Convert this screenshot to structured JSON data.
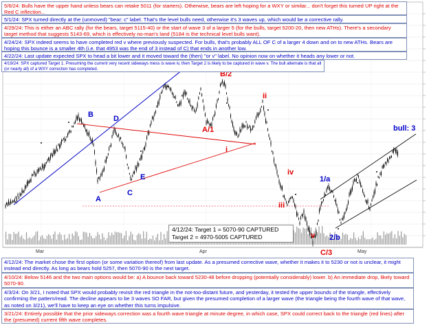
{
  "chart_data": {
    "type": "line",
    "annotations_top": [
      {
        "color": "#e00000",
        "text": "5/6/24:  Bulls have the upper hand unless bears can retake 5011 (for starters).  Otherwise, bears are left hoping for a WXY or similar... don't forget this turned UP right at the Red C inflection..."
      },
      {
        "color": "#0000c8",
        "text": "5/1/24:  SPX turned directly at the (unmoved) \"bear: c\" label.  That's the level bulls need, otherwise it's 3 waves up, which would be a corrective rally."
      },
      {
        "color": "#e00000",
        "text": "4/29/24:  This is either an ABC rally (for the bears, target 5115-40) or the start of wave 3 of a larger 5 (for the bulls, target 5200-20, then new ATHs).   There's a secondary target method that suggests 5143-69, which is effectively no-man's land (5184 is the technical level bulls want)."
      },
      {
        "color": "#0000c8",
        "text": "4/24/24:  SPX indeed seems to have completed red v where previously suspected.  For bulls, that's probably ALL OF C of a larger 4 down and on to new ATHs.  Bears are hoping this bounce is a smaller 4th (i.e. that 4953 was the end of 3 instead of C) that ends in another low."
      },
      {
        "color": "#0000c8",
        "text": "4/22/24:  Last update expected SPX to head a bit lower and it moved toward the (then) \"or v\" label.  No opinion now on whether it heads any lower or not."
      },
      {
        "color": "#0000c8",
        "text": "4/19/24:  SPX captured Target 1.  Presuming the current very recent sideways mess is wave iv, then Target 2 is likely to be captured in wave v.  The bull alternate is that all (or nearly all) of a WXY correction has completed."
      }
    ],
    "annotations_bottom": [
      {
        "color": "#0000c8",
        "text": "4/12/24:  The market chose the first option (or some variation thereof) from last update.  As a presumed corrective wave, whether it makes it to 5230 or not is unclear, it might instead end directly.  As long as bears hold 5257, then 5070-90 is the next target."
      },
      {
        "color": "#e00000",
        "text": "4/10/24:  Below 5146 and the two main options would be:  a)  A bounce back toward 5230-48 before dropping (potentially considerably) lower.  b)  An immediate drop, likely toward 5070-90."
      },
      {
        "color": "#0000c8",
        "text": "4/3/24:  On 3/21, I noted that SPX would probably revisit the red triangle in the not-too-distant future, and yesterday, it tested the upper bounds of the triangle, effectively confirming the pattern/read.  The decline appears to be 3 waves SO FAR, but given the presumed completion of a larger wave (the triangle being the fourth wave of that wave, as noted on 3/21), we'll have to keep an eye on whether this turns impulsive."
      },
      {
        "color": "#e00000",
        "text": "3/21/24:  Entirely possible that the prior sideways correction was a fourth wave triangle at minute degree, in which case, SPX could correct back to the triangle (red lines) after the (presumed) current fifth wave completes."
      }
    ],
    "target_box": {
      "line1": "4/12/24:  Target 1 = 5070-90 CAPTURED",
      "line2": "Target 2 = 4970-5005 CAPTURED"
    },
    "wave_labels": [
      {
        "text": "A",
        "color": "#0000c8"
      },
      {
        "text": "B",
        "color": "#0000c8"
      },
      {
        "text": "C",
        "color": "#0000c8"
      },
      {
        "text": "D",
        "color": "#0000c8"
      },
      {
        "text": "E",
        "color": "#0000c8"
      },
      {
        "text": "B/2",
        "color": "#e00000"
      },
      {
        "text": "A/1",
        "color": "#e00000"
      },
      {
        "text": "i",
        "color": "#e00000"
      },
      {
        "text": "ii",
        "color": "#e00000"
      },
      {
        "text": "iii",
        "color": "#e00000"
      },
      {
        "text": "iv",
        "color": "#e00000"
      },
      {
        "text": "v",
        "color": "#e00000"
      },
      {
        "text": "C/3",
        "color": "#e00000"
      },
      {
        "text": "1/a",
        "color": "#0000c8"
      },
      {
        "text": "2/b",
        "color": "#0000c8"
      },
      {
        "text": "bull: 3",
        "color": "#0000c8"
      }
    ],
    "x_tick_labels": [
      "Mar",
      "Apr",
      "May"
    ],
    "colors": {
      "bull": "#0000c8",
      "bear": "#e00000",
      "candle": "#000000",
      "grid": "#cfcfcf"
    }
  }
}
